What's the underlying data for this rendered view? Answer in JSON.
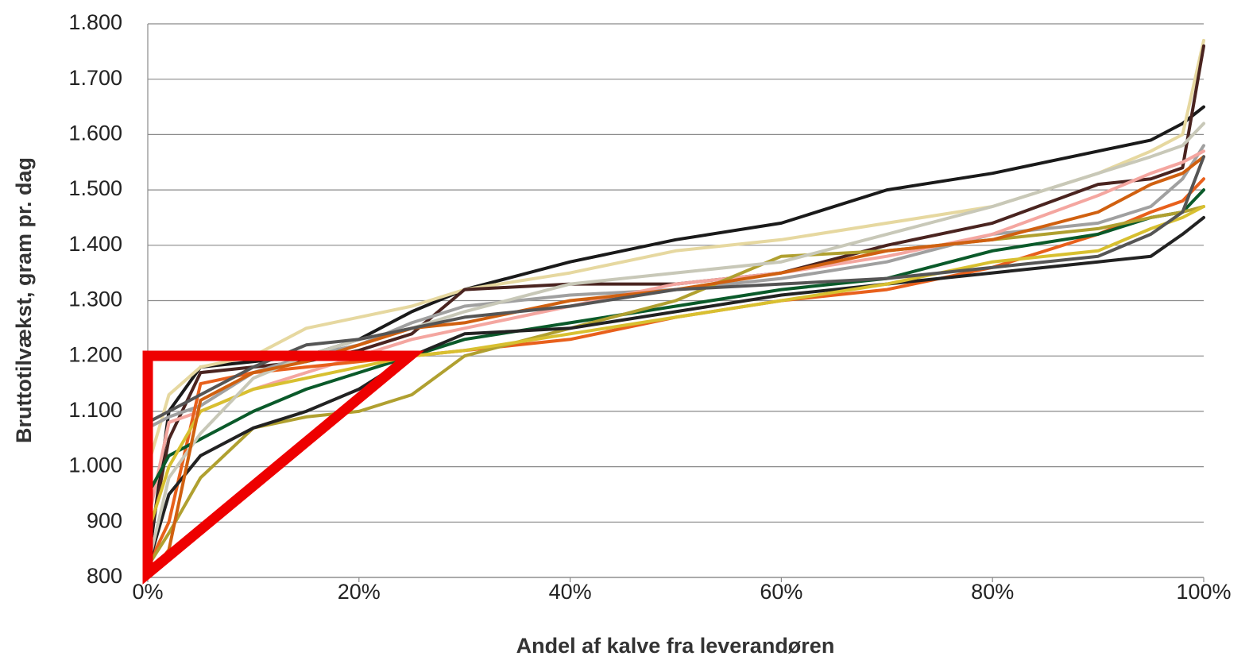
{
  "chart_data": {
    "type": "line",
    "xlabel": "Andel af kalve fra leverandøren",
    "ylabel": "Bruttotilvækst, gram pr. dag",
    "x": [
      0,
      2,
      5,
      10,
      15,
      20,
      25,
      30,
      40,
      50,
      60,
      70,
      80,
      90,
      95,
      98,
      100
    ],
    "series": [
      {
        "color": "#1a1a1a",
        "values": [
          820,
          1100,
          1180,
          1190,
          1200,
          1230,
          1280,
          1320,
          1370,
          1410,
          1440,
          1500,
          1530,
          1570,
          1590,
          1620,
          1650
        ]
      },
      {
        "color": "#e6d8a0",
        "values": [
          1000,
          1130,
          1180,
          1200,
          1250,
          1270,
          1290,
          1320,
          1350,
          1390,
          1410,
          1440,
          1470,
          1530,
          1570,
          1600,
          1770
        ]
      },
      {
        "color": "#4a2420",
        "values": [
          850,
          1050,
          1170,
          1180,
          1190,
          1210,
          1240,
          1320,
          1330,
          1330,
          1350,
          1400,
          1440,
          1510,
          1520,
          1540,
          1760
        ]
      },
      {
        "color": "#a0a0a0",
        "values": [
          1070,
          1090,
          1110,
          1170,
          1200,
          1220,
          1260,
          1290,
          1310,
          1320,
          1340,
          1370,
          1420,
          1440,
          1470,
          1520,
          1580
        ]
      },
      {
        "color": "#f4a6a0",
        "values": [
          900,
          1080,
          1100,
          1140,
          1170,
          1200,
          1230,
          1250,
          1290,
          1330,
          1350,
          1380,
          1420,
          1490,
          1530,
          1550,
          1570
        ]
      },
      {
        "color": "#e8601c",
        "values": [
          820,
          900,
          1150,
          1170,
          1180,
          1190,
          1200,
          1210,
          1230,
          1270,
          1300,
          1320,
          1360,
          1420,
          1460,
          1480,
          1520
        ]
      },
      {
        "color": "#0a5a2a",
        "values": [
          950,
          1020,
          1050,
          1100,
          1140,
          1170,
          1200,
          1230,
          1260,
          1290,
          1320,
          1340,
          1390,
          1420,
          1450,
          1460,
          1500
        ]
      },
      {
        "color": "#b0a030",
        "values": [
          820,
          880,
          980,
          1070,
          1090,
          1100,
          1130,
          1200,
          1250,
          1300,
          1380,
          1390,
          1410,
          1430,
          1450,
          1460,
          1470
        ]
      },
      {
        "color": "#222222",
        "values": [
          820,
          950,
          1020,
          1070,
          1100,
          1140,
          1200,
          1240,
          1250,
          1280,
          1310,
          1330,
          1350,
          1370,
          1380,
          1420,
          1450
        ]
      },
      {
        "color": "#d8c030",
        "values": [
          880,
          1000,
          1100,
          1140,
          1160,
          1180,
          1200,
          1210,
          1240,
          1270,
          1300,
          1330,
          1370,
          1390,
          1430,
          1450,
          1470
        ]
      },
      {
        "color": "#c8c8b8",
        "values": [
          820,
          980,
          1060,
          1160,
          1200,
          1230,
          1250,
          1280,
          1330,
          1350,
          1370,
          1420,
          1470,
          1530,
          1560,
          1580,
          1620
        ]
      },
      {
        "color": "#d06010",
        "values": [
          800,
          850,
          1120,
          1170,
          1190,
          1220,
          1250,
          1260,
          1300,
          1320,
          1350,
          1390,
          1410,
          1460,
          1510,
          1530,
          1560
        ]
      },
      {
        "color": "#555555",
        "values": [
          1080,
          1100,
          1130,
          1180,
          1220,
          1230,
          1250,
          1270,
          1290,
          1320,
          1330,
          1340,
          1360,
          1380,
          1420,
          1460,
          1560
        ]
      }
    ],
    "xlim": [
      0,
      100
    ],
    "xticks": [
      {
        "value": 0,
        "label": "0%"
      },
      {
        "value": 20,
        "label": "20%"
      },
      {
        "value": 40,
        "label": "40%"
      },
      {
        "value": 60,
        "label": "60%"
      },
      {
        "value": 80,
        "label": "80%"
      },
      {
        "value": 100,
        "label": "100%"
      }
    ],
    "ylim": [
      800,
      1800
    ],
    "yticks": [
      800,
      900,
      {
        "value": 1000,
        "label": "1.000"
      },
      {
        "value": 1100,
        "label": "1.100"
      },
      {
        "value": 1200,
        "label": "1.200"
      },
      {
        "value": 1300,
        "label": "1.300"
      },
      {
        "value": 1400,
        "label": "1.400"
      },
      {
        "value": 1500,
        "label": "1.500"
      },
      {
        "value": 1600,
        "label": "1.600"
      },
      {
        "value": 1700,
        "label": "1.700"
      },
      {
        "value": 1800,
        "label": "1.800"
      }
    ],
    "grid": true
  }
}
